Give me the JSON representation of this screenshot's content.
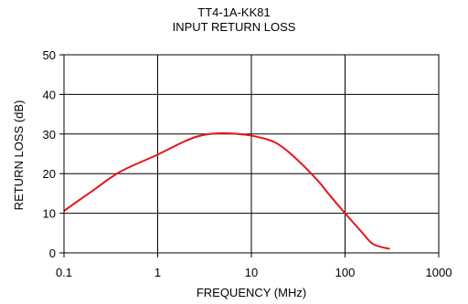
{
  "chart_data": {
    "type": "line",
    "title": "TT4-1A-KK81",
    "subtitle": "INPUT RETURN LOSS",
    "xlabel": "FREQUENCY (MHz)",
    "ylabel": "RETURN LOSS (dB)",
    "xscale": "log",
    "xlim": [
      0.1,
      1000
    ],
    "ylim": [
      0,
      50
    ],
    "xticks": [
      "0.1",
      "1",
      "10",
      "100",
      "1000"
    ],
    "yticks": [
      "0",
      "10",
      "20",
      "30",
      "40",
      "50"
    ],
    "grid": true,
    "series": [
      {
        "color": "#e8141c",
        "x": [
          0.1,
          0.2,
          0.4,
          1,
          2,
          3,
          5,
          8,
          10,
          15,
          20,
          30,
          50,
          70,
          100,
          150,
          200,
          300
        ],
        "y": [
          10.6,
          15.6,
          20.5,
          24.8,
          28.3,
          29.7,
          30.2,
          29.9,
          29.6,
          28.6,
          27.2,
          23.8,
          18.5,
          14.3,
          10.0,
          5.3,
          2.2,
          1.0
        ]
      }
    ]
  }
}
